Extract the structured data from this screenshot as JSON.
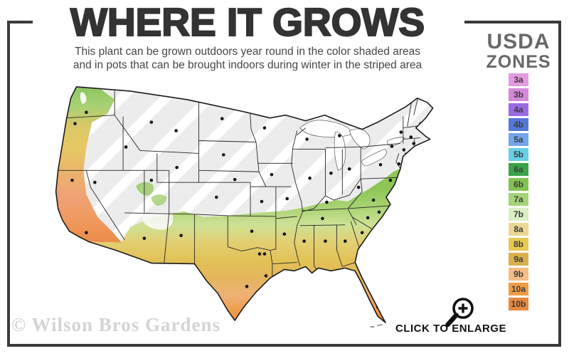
{
  "header": {
    "title": "WHERE IT GROWS",
    "subtitle_line1": "This plant can be grown outdoors year round in the color shaded areas",
    "subtitle_line2": "and in pots that can be brought indoors during winter in the striped area"
  },
  "legend": {
    "title_line1": "USDA",
    "title_line2": "ZONES",
    "zones": [
      {
        "label": "3a",
        "color": "#e39ae0"
      },
      {
        "label": "3b",
        "color": "#d488da"
      },
      {
        "label": "4a",
        "color": "#9a6ae4"
      },
      {
        "label": "4b",
        "color": "#5478d8"
      },
      {
        "label": "5a",
        "color": "#73a6ea"
      },
      {
        "label": "5b",
        "color": "#66d0e6"
      },
      {
        "label": "6a",
        "color": "#3ba34a"
      },
      {
        "label": "6b",
        "color": "#82c350"
      },
      {
        "label": "7a",
        "color": "#a5d478"
      },
      {
        "label": "7b",
        "color": "#dbeec4"
      },
      {
        "label": "8a",
        "color": "#ecd893"
      },
      {
        "label": "8b",
        "color": "#e7c94f"
      },
      {
        "label": "9a",
        "color": "#d9b04c"
      },
      {
        "label": "9b",
        "color": "#f4bd86"
      },
      {
        "label": "10a",
        "color": "#f19d46"
      },
      {
        "label": "10b",
        "color": "#e8883c"
      }
    ]
  },
  "map": {
    "striped_area_color": "#ececec",
    "stripe_color": "#ffffff",
    "city_dots": [
      [
        58,
        46
      ],
      [
        42,
        62
      ],
      [
        114,
        95
      ],
      [
        150,
        60
      ],
      [
        185,
        72
      ],
      [
        250,
        55
      ],
      [
        252,
        106
      ],
      [
        268,
        141
      ],
      [
        186,
        124
      ],
      [
        70,
        145
      ],
      [
        150,
        142
      ],
      [
        38,
        142
      ],
      [
        58,
        216
      ],
      [
        140,
        224
      ],
      [
        192,
        220
      ],
      [
        242,
        166
      ],
      [
        306,
        172
      ],
      [
        292,
        214
      ],
      [
        303,
        246
      ],
      [
        310,
        246
      ],
      [
        285,
        292
      ],
      [
        312,
        277
      ],
      [
        310,
        68
      ],
      [
        320,
        134
      ],
      [
        342,
        168
      ],
      [
        370,
        84
      ],
      [
        374,
        139
      ],
      [
        404,
        132
      ],
      [
        430,
        126
      ],
      [
        416,
        79
      ],
      [
        338,
        218
      ],
      [
        338,
        270
      ],
      [
        366,
        228
      ],
      [
        396,
        228
      ],
      [
        424,
        228
      ],
      [
        392,
        196
      ],
      [
        398,
        173
      ],
      [
        444,
        296
      ],
      [
        470,
        321
      ],
      [
        448,
        216
      ],
      [
        456,
        195
      ],
      [
        472,
        187
      ],
      [
        464,
        170
      ],
      [
        443,
        152
      ],
      [
        474,
        120
      ],
      [
        490,
        94
      ],
      [
        500,
        119
      ],
      [
        488,
        142
      ],
      [
        503,
        74
      ],
      [
        517,
        81
      ],
      [
        531,
        62
      ],
      [
        521,
        90
      ],
      [
        507,
        99
      ]
    ]
  },
  "footer": {
    "watermark": "© Wilson Bros Gardens",
    "enlarge_label": "CLICK TO ENLARGE"
  },
  "icons": {
    "enlarge": "magnifier-plus"
  },
  "colors": {
    "frame": "#3b3b3b",
    "title": "#333333",
    "subtitle": "#464646",
    "legend_title": "#686868",
    "watermark": "#d4d4d4"
  }
}
